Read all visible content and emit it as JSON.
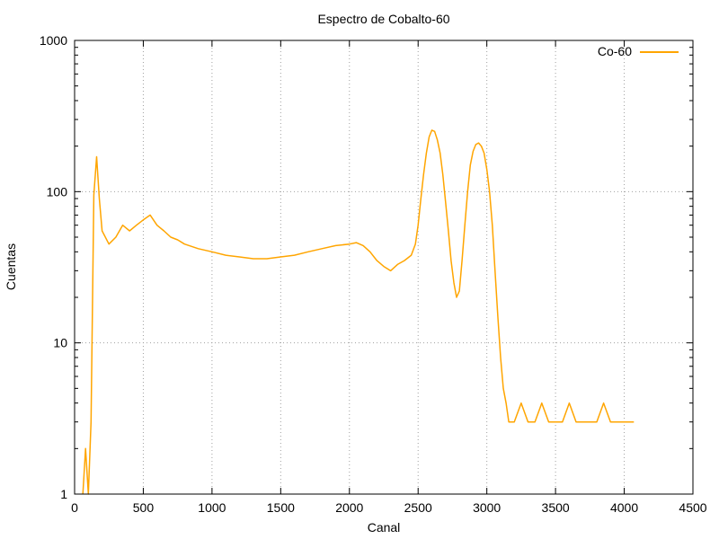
{
  "chart_data": {
    "type": "line",
    "title": "Espectro de Cobalto-60",
    "xlabel": "Canal",
    "ylabel": "Cuentas",
    "xlim": [
      0,
      4500
    ],
    "ylim": [
      1,
      1000
    ],
    "yscale": "log",
    "xticks": [
      0,
      500,
      1000,
      1500,
      2000,
      2500,
      3000,
      3500,
      4000,
      4500
    ],
    "yticks": [
      1,
      10,
      100,
      1000
    ],
    "xtick_labels": [
      "0",
      "500",
      "1000",
      "1500",
      "2000",
      "2500",
      "3000",
      "3500",
      "4000",
      "4500"
    ],
    "ytick_labels": [
      "1",
      "10",
      "100",
      "1000"
    ],
    "grid": true,
    "legend_position": "top-right",
    "series": [
      {
        "name": "Co-60",
        "color": "#ffa500",
        "x": [
          60,
          80,
          100,
          120,
          140,
          160,
          180,
          200,
          250,
          300,
          350,
          400,
          450,
          500,
          550,
          600,
          650,
          700,
          750,
          800,
          900,
          1000,
          1100,
          1200,
          1300,
          1400,
          1500,
          1600,
          1700,
          1800,
          1900,
          2000,
          2050,
          2100,
          2150,
          2200,
          2250,
          2300,
          2350,
          2400,
          2450,
          2480,
          2500,
          2520,
          2540,
          2560,
          2580,
          2600,
          2620,
          2640,
          2660,
          2680,
          2700,
          2720,
          2740,
          2760,
          2780,
          2800,
          2820,
          2840,
          2860,
          2880,
          2900,
          2920,
          2940,
          2960,
          2980,
          3000,
          3020,
          3040,
          3060,
          3080,
          3100,
          3120,
          3140,
          3160,
          3200,
          3250,
          3300,
          3350,
          3400,
          3450,
          3500,
          3550,
          3600,
          3650,
          3700,
          3750,
          3800,
          3850,
          3900,
          3950,
          4000,
          4050,
          4070
        ],
        "y": [
          1,
          2,
          1,
          3,
          95,
          170,
          90,
          55,
          45,
          50,
          60,
          55,
          60,
          65,
          70,
          60,
          55,
          50,
          48,
          45,
          42,
          40,
          38,
          37,
          36,
          36,
          37,
          38,
          40,
          42,
          44,
          45,
          46,
          44,
          40,
          35,
          32,
          30,
          33,
          35,
          38,
          45,
          60,
          90,
          130,
          180,
          230,
          255,
          250,
          220,
          180,
          130,
          85,
          55,
          35,
          25,
          20,
          22,
          35,
          60,
          100,
          150,
          185,
          205,
          210,
          200,
          180,
          140,
          100,
          60,
          30,
          15,
          8,
          5,
          4,
          3,
          3,
          4,
          3,
          3,
          4,
          3,
          3,
          3,
          4,
          3,
          3,
          3,
          3,
          4,
          3,
          3,
          3,
          3,
          3
        ]
      }
    ]
  }
}
